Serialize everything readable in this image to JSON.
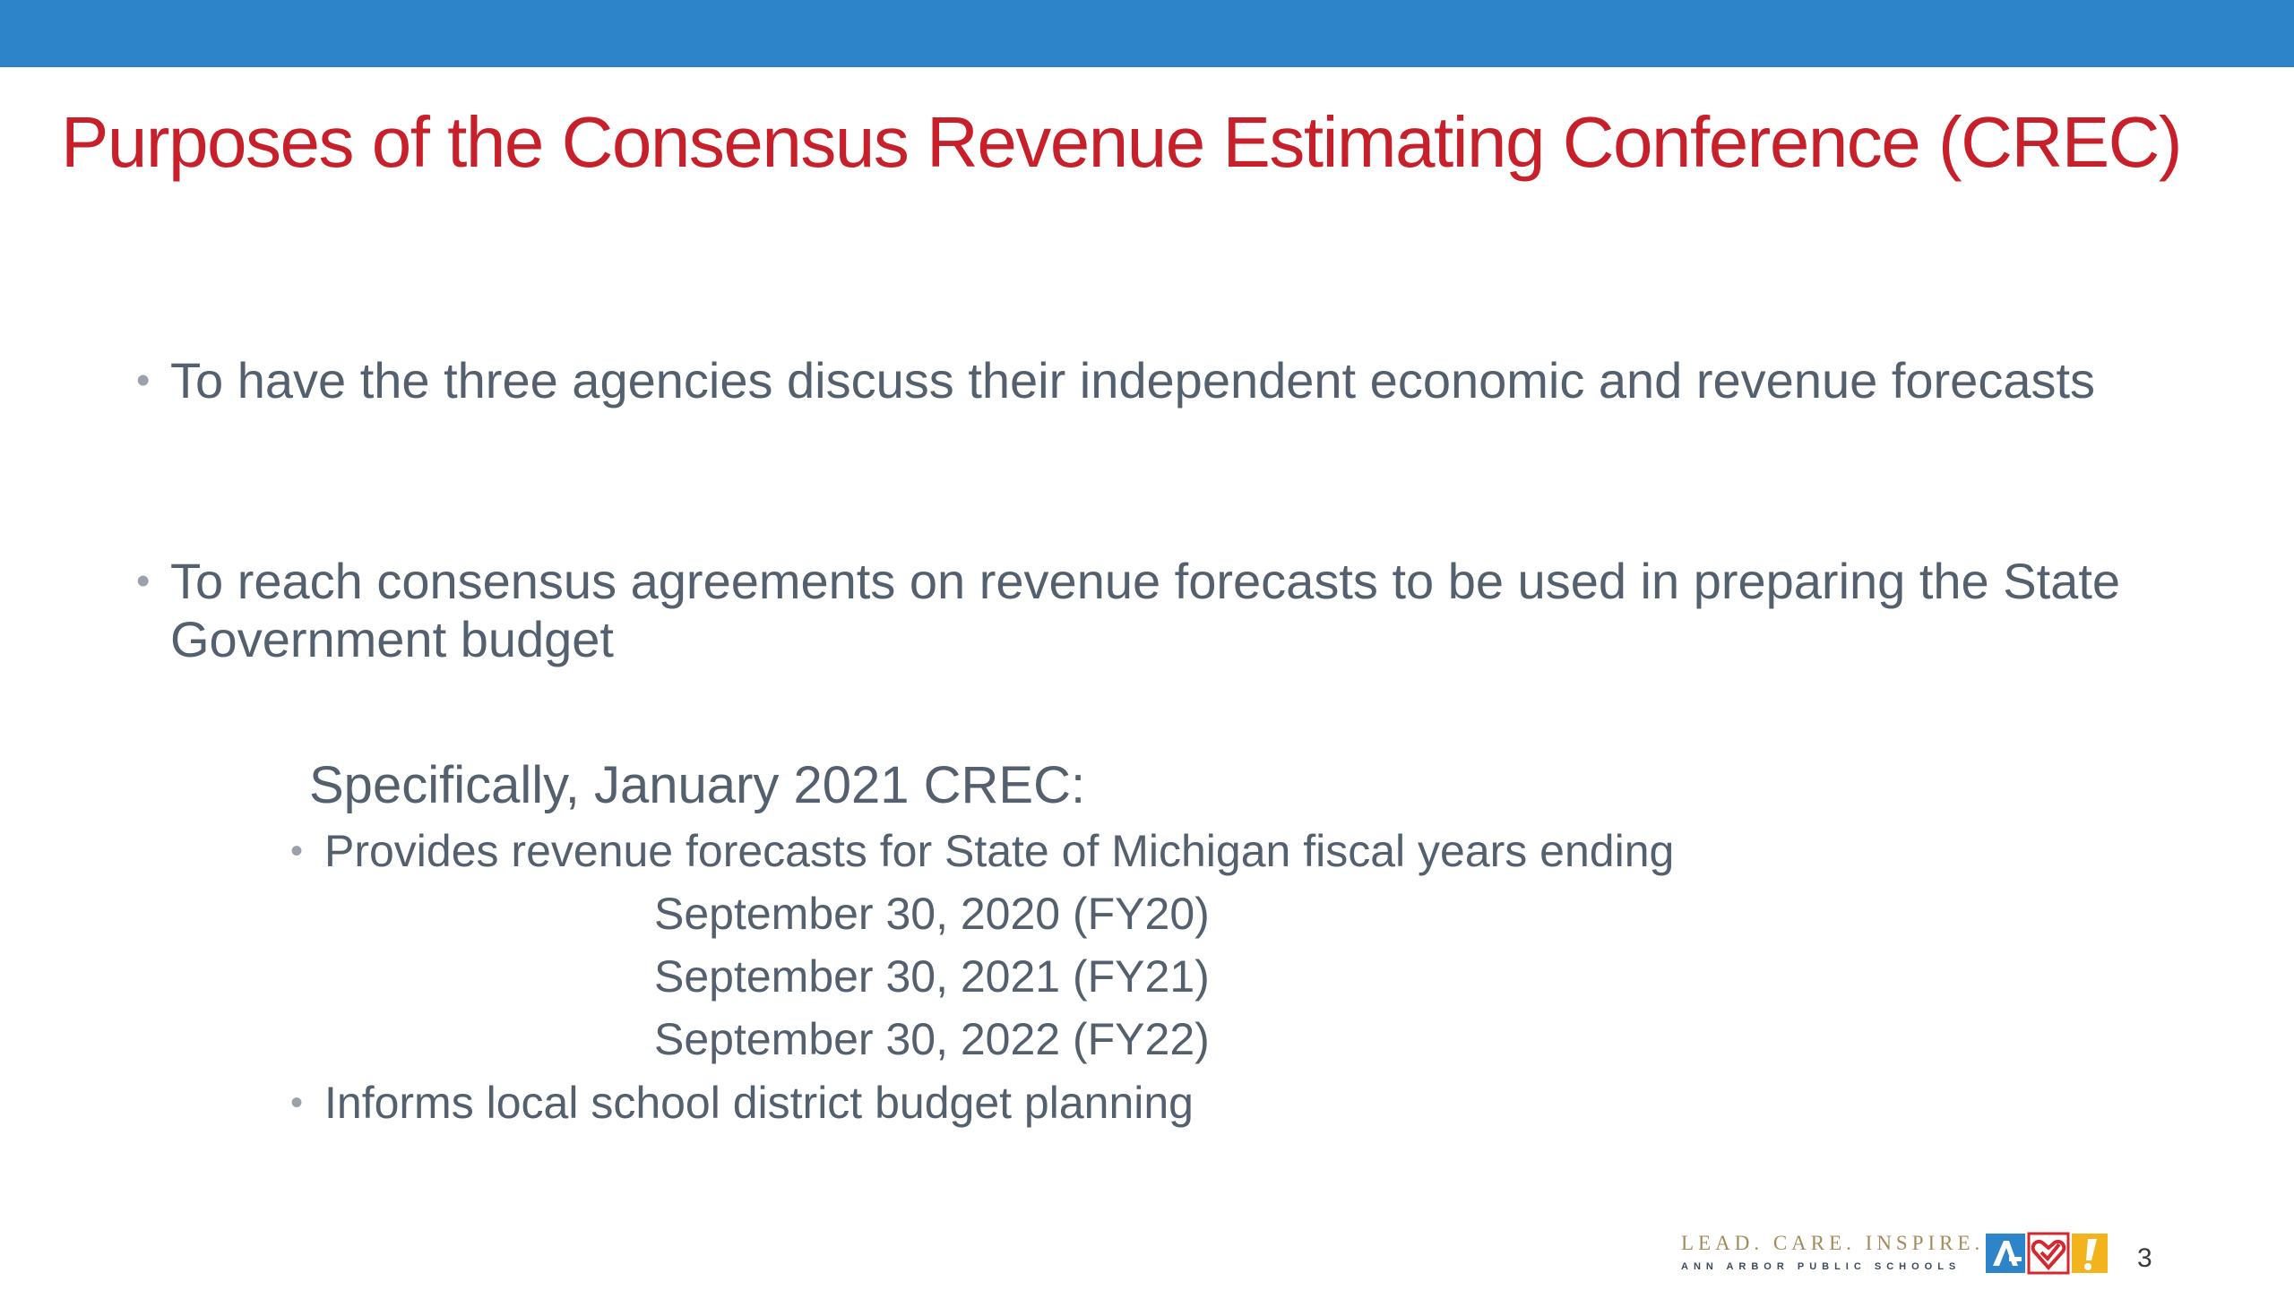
{
  "slide": {
    "title": "Purposes of the Consensus Revenue Estimating Conference (CREC)",
    "bullets": [
      "To have the three agencies discuss their independent economic and revenue forecasts",
      "To reach consensus agreements on revenue forecasts to be used in preparing the State Government budget"
    ],
    "subheading": "Specifically, January 2021 CREC:",
    "sub_bullets": [
      "Provides revenue forecasts for State of Michigan fiscal years ending",
      "Informs local school district budget planning"
    ],
    "fiscal_years": [
      "September 30, 2020 (FY20)",
      "September 30, 2021 (FY21)",
      "September 30, 2022 (FY22)"
    ],
    "bullet_glyph": "•",
    "page_number": "3"
  },
  "footer": {
    "tagline": "LEAD. CARE. INSPIRE.",
    "organization": "ANN ARBOR PUBLIC SCHOOLS",
    "icons": [
      "a2-logo-icon",
      "heart-check-icon",
      "exclamation-icon"
    ]
  },
  "colors": {
    "top_bar": "#2d84c8",
    "title": "#c8202a",
    "body_text": "#54606e",
    "tagline": "#a38b5b",
    "icon_blue": "#2d84c8",
    "icon_red": "#d7262e",
    "icon_yellow": "#f2b31d"
  }
}
